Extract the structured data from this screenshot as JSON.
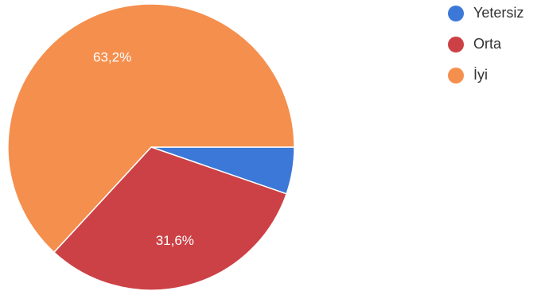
{
  "chart_data": {
    "type": "pie",
    "categories": [
      "Yetersiz",
      "Orta",
      "İyi"
    ],
    "values": [
      5.3,
      31.6,
      63.2
    ],
    "data_labels": [
      "",
      "31,6%",
      "63,2%"
    ],
    "colors": [
      "#3c78d8",
      "#cc4146",
      "#f58f4e"
    ],
    "legend_position": "top-right",
    "start_angle_deg": 0,
    "direction": "clockwise"
  }
}
